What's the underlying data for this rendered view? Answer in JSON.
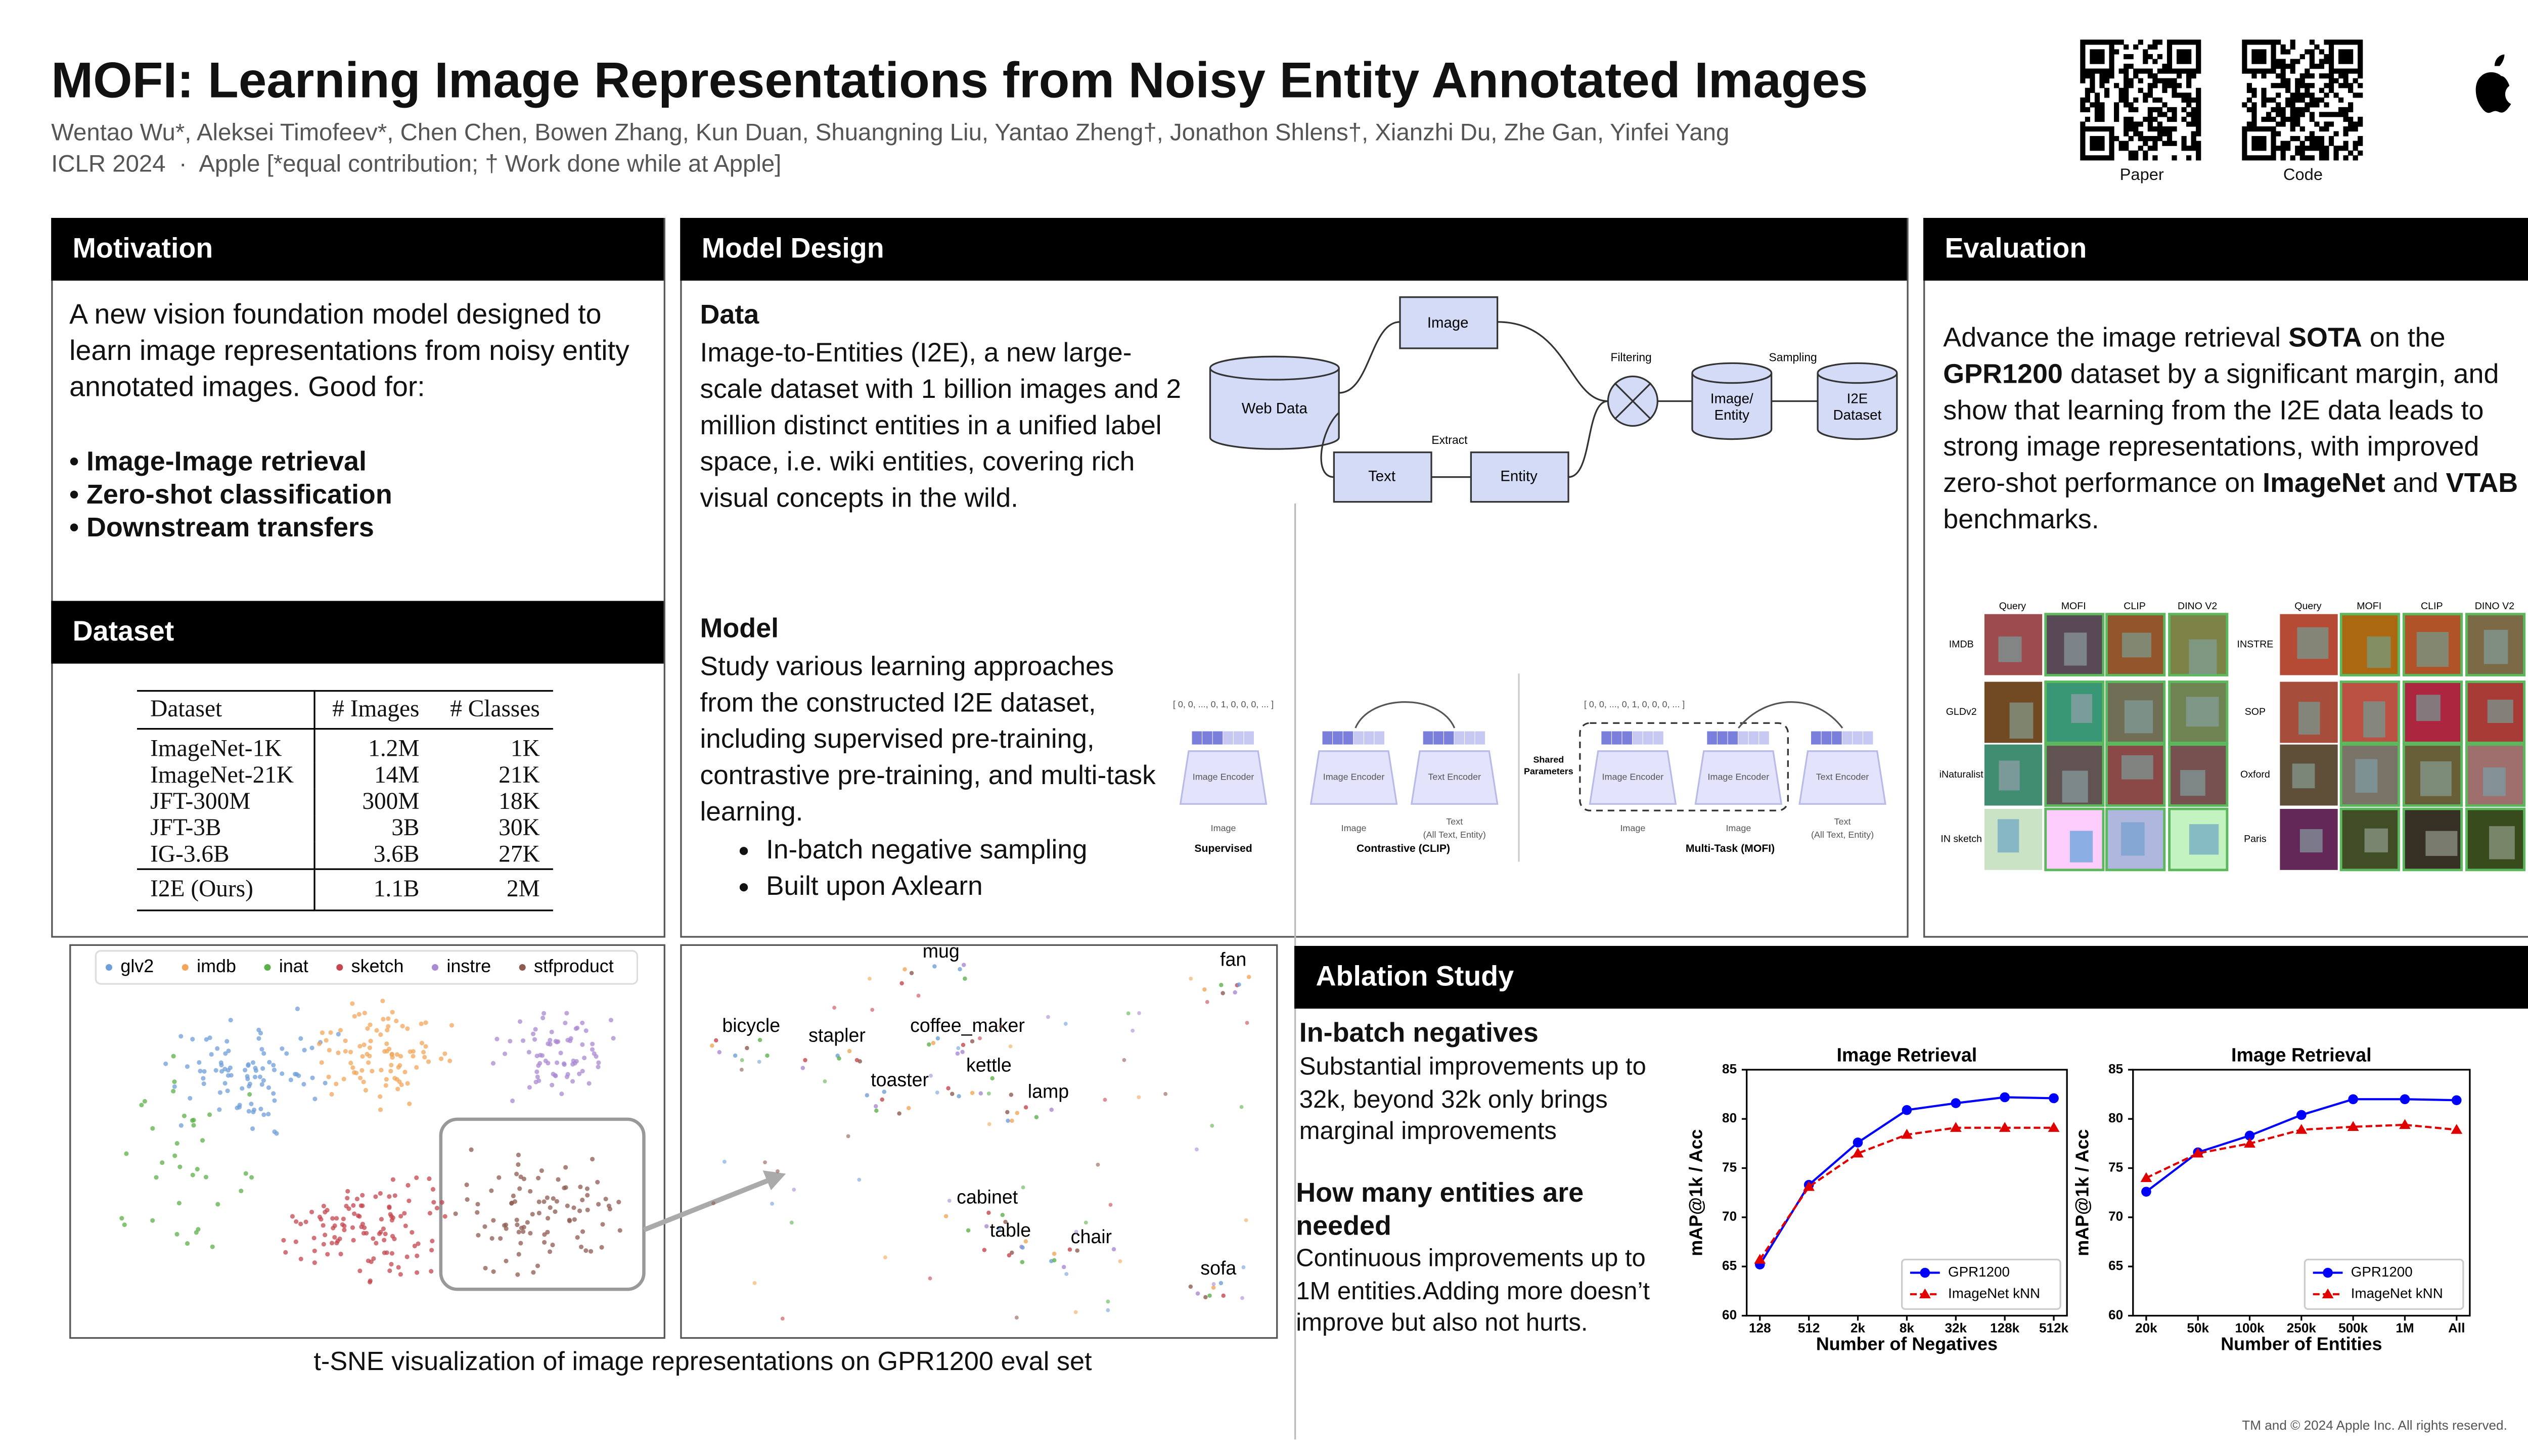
{
  "header": {
    "title": "MOFI: Learning Image Representations from Noisy Entity Annotated Images",
    "authors": "Wentao Wu*, Aleksei Timofeev*, Chen Chen, Bowen Zhang, Kun Duan, Shuangning Liu, Yantao Zheng†, Jonathon Shlens†, Xianzhi Du, Zhe Gan, Yinfei Yang",
    "venue": "ICLR 2024  ·  Apple [*equal contribution; † Work done while at Apple]",
    "qr_labels": [
      "Paper",
      "Code"
    ]
  },
  "motivation": {
    "heading": "Motivation",
    "text": "A new vision foundation model designed to learn image representations from noisy entity annotated images. Good for:",
    "bullets": [
      "• Image-Image retrieval",
      "• Zero-shot classification",
      "• Downstream transfers"
    ]
  },
  "dataset": {
    "heading": "Dataset",
    "table": {
      "columns": [
        "Dataset",
        "# Images",
        "# Classes"
      ],
      "rows": [
        [
          "ImageNet-1K",
          "1.2M",
          "1K"
        ],
        [
          "ImageNet-21K",
          "14M",
          "21K"
        ],
        [
          "JFT-300M",
          "300M",
          "18K"
        ],
        [
          "JFT-3B",
          "3B",
          "30K"
        ],
        [
          "IG-3.6B",
          "3.6B",
          "27K"
        ]
      ],
      "ours": [
        "I2E (Ours)",
        "1.1B",
        "2M"
      ]
    }
  },
  "model_design": {
    "heading": "Model Design",
    "data_heading": "Data",
    "data_text": "Image-to-Entities (I2E), a new large-scale dataset with 1 billion images and 2 million distinct entities in a unified label space, i.e. wiki entities, covering rich visual concepts in the wild.",
    "model_heading": "Model",
    "model_text": "Study various learning approaches from the constructed I2E dataset, including supervised pre-training, contrastive pre-training, and multi-task learning.",
    "bullets": [
      "In-batch negative sampling",
      "Built upon Axlearn"
    ],
    "pipeline": {
      "web_data": "Web Data",
      "image": "Image",
      "text": "Text",
      "entity": "Entity",
      "extract": "Extract",
      "filtering": "Filtering",
      "sampling": "Sampling",
      "image_entity": [
        "Image/",
        "Entity"
      ],
      "i2e": [
        "I2E",
        "Dataset"
      ]
    },
    "methods": {
      "onehot": "[ 0, 0, ..., 0, 1, 0, 0, 0, ... ]",
      "image_encoder": "Image Encoder",
      "text_encoder": "Text Encoder",
      "image": "Image",
      "text": [
        "Text",
        "(All Text, Entity)"
      ],
      "shared": [
        "Shared",
        "Parameters"
      ],
      "names": [
        "Supervised",
        "Contrastive (CLIP)",
        "Multi-Task (MOFI)"
      ]
    }
  },
  "evaluation": {
    "heading": "Evaluation",
    "text": [
      "Advance the image retrieval ",
      "SOTA",
      " on the ",
      "GPR1200",
      " dataset by a significant margin, and show that learning from the I2E data leads to strong image representations, with improved zero-shot performance on ",
      "ImageNet",
      " and ",
      "VTAB",
      " benchmarks."
    ],
    "grid_columns": [
      "Query",
      "MOFI",
      "CLIP",
      "DINO V2"
    ],
    "grid_rows_left": [
      "IMDB",
      "GLDv2",
      "iNaturalist",
      "IN sketch"
    ],
    "grid_rows_right": [
      "INSTRE",
      "SOP",
      "Oxford",
      "Paris"
    ]
  },
  "tsne": {
    "legend": [
      {
        "name": "glv2",
        "color": "#6f9fd8"
      },
      {
        "name": "imdb",
        "color": "#f2a65a"
      },
      {
        "name": "inat",
        "color": "#5cb04a"
      },
      {
        "name": "sketch",
        "color": "#c4464f"
      },
      {
        "name": "instre",
        "color": "#a98ad3"
      },
      {
        "name": "stfproduct",
        "color": "#8e5b50"
      }
    ],
    "labels": [
      "mug",
      "fan",
      "bicycle",
      "stapler",
      "coffee_maker",
      "kettle",
      "toaster",
      "lamp",
      "cabinet",
      "table",
      "chair",
      "sofa"
    ],
    "caption": "t-SNE visualization of image representations on GPR1200 eval set"
  },
  "ablation": {
    "heading": "Ablation Study",
    "items": [
      {
        "heading": "In-batch negatives",
        "text": "Substantial improvements up to 32k, beyond 32k only brings marginal improvements"
      },
      {
        "heading": "How many entities are needed",
        "text": "Continuous improvements up to 1M entities.Adding more doesn’t improve but also not hurts."
      }
    ]
  },
  "chart_data": [
    {
      "type": "line",
      "title": "Image Retrieval",
      "xlabel": "Number of Negatives",
      "ylabel": "mAP@1k / Acc",
      "categories": [
        "128",
        "512",
        "2k",
        "8k",
        "32k",
        "128k",
        "512k"
      ],
      "series": [
        {
          "name": "GPR1200",
          "color": "#0000ff",
          "marker": "circle",
          "linestyle": "solid",
          "values": [
            65.2,
            73.3,
            77.6,
            80.9,
            81.6,
            82.2,
            82.1
          ]
        },
        {
          "name": "ImageNet kNN",
          "color": "#e00000",
          "marker": "triangle",
          "linestyle": "dashed",
          "values": [
            65.7,
            73.1,
            76.5,
            78.4,
            79.1,
            79.1,
            79.1
          ]
        }
      ],
      "ylim": [
        60,
        85
      ],
      "yticks": [
        60,
        65,
        70,
        75,
        80,
        85
      ],
      "legend": "lower right"
    },
    {
      "type": "line",
      "title": "Image Retrieval",
      "xlabel": "Number of Entities",
      "ylabel": "mAP@1k / Acc",
      "categories": [
        "20k",
        "50k",
        "100k",
        "250k",
        "500k",
        "1M",
        "All"
      ],
      "series": [
        {
          "name": "GPR1200",
          "color": "#0000ff",
          "marker": "circle",
          "linestyle": "solid",
          "values": [
            72.6,
            76.6,
            78.3,
            80.4,
            82.0,
            82.0,
            81.9
          ]
        },
        {
          "name": "ImageNet kNN",
          "color": "#e00000",
          "marker": "triangle",
          "linestyle": "dashed",
          "values": [
            74.0,
            76.5,
            77.5,
            78.9,
            79.2,
            79.4,
            78.9
          ]
        }
      ],
      "ylim": [
        60,
        85
      ],
      "yticks": [
        60,
        65,
        70,
        75,
        80,
        85
      ],
      "legend": "lower right"
    }
  ],
  "footer": "TM and © 2024 Apple Inc. All rights reserved."
}
